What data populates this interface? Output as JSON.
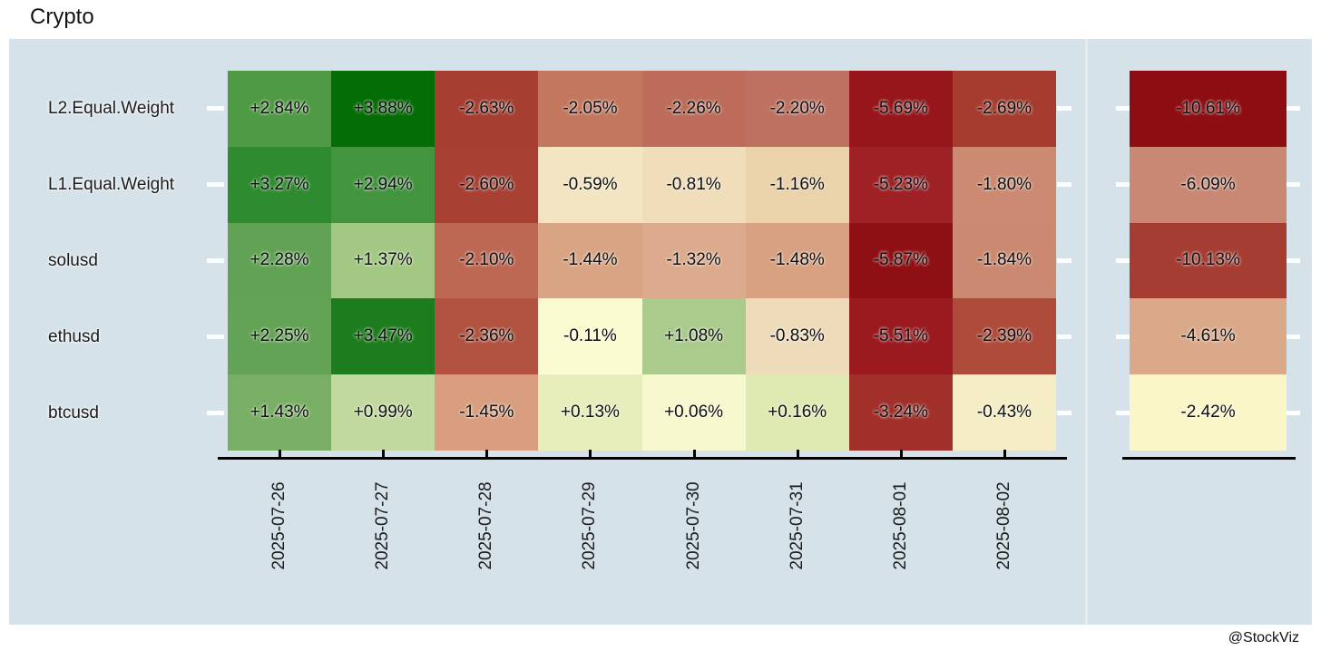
{
  "title": "Crypto",
  "watermark": "@StockViz",
  "panel_bg": "#d5e2e9",
  "axis_color": "#000000",
  "tick_color": "#ffffff",
  "chart_data": {
    "type": "heatmap",
    "title": "Crypto",
    "colormap": "RdYlGn",
    "legend_position": "none",
    "x_categories": [
      "2025-07-26",
      "2025-07-27",
      "2025-07-28",
      "2025-07-29",
      "2025-07-30",
      "2025-07-31",
      "2025-08-01",
      "2025-08-02"
    ],
    "y_categories": [
      "L2.Equal.Weight",
      "L1.Equal.Weight",
      "solusd",
      "ethusd",
      "btcusd"
    ],
    "value_unit": "%",
    "rows": [
      {
        "name": "L2.Equal.Weight",
        "values": [
          2.84,
          3.88,
          -2.63,
          -2.05,
          -2.26,
          -2.2,
          -5.69,
          -2.69
        ],
        "labels": [
          "+2.84%",
          "+3.88%",
          "-2.63%",
          "-2.05%",
          "-2.26%",
          "-2.20%",
          "-5.69%",
          "-2.69%"
        ],
        "colors": [
          "#4f9a44",
          "#056d05",
          "#a63e31",
          "#c3775f",
          "#bc6c59",
          "#be7161",
          "#97161b",
          "#a63c2f"
        ],
        "total": -10.61,
        "total_label": "-10.61%",
        "total_color": "#8d0d12"
      },
      {
        "name": "L1.Equal.Weight",
        "values": [
          3.27,
          2.94,
          -2.6,
          -0.59,
          -0.81,
          -1.16,
          -5.23,
          -1.8
        ],
        "labels": [
          "+3.27%",
          "+2.94%",
          "-2.60%",
          "-0.59%",
          "-0.81%",
          "-1.16%",
          "-5.23%",
          "-1.80%"
        ],
        "colors": [
          "#2f8b30",
          "#43943f",
          "#a84134",
          "#f3e5c1",
          "#f0ddb9",
          "#ead2aa",
          "#9d2125",
          "#cb8a71"
        ],
        "total": -6.09,
        "total_label": "-6.09%",
        "total_color": "#c98873"
      },
      {
        "name": "solusd",
        "values": [
          2.28,
          1.37,
          -2.1,
          -1.44,
          -1.32,
          -1.48,
          -5.87,
          -1.84
        ],
        "labels": [
          "+2.28%",
          "+1.37%",
          "-2.10%",
          "-1.44%",
          "-1.32%",
          "-1.48%",
          "-5.87%",
          "-1.84%"
        ],
        "colors": [
          "#62a255",
          "#a3c883",
          "#bd6853",
          "#d9a484",
          "#dcab8e",
          "#d7a182",
          "#8f1014",
          "#ca8970"
        ],
        "total": -10.13,
        "total_label": "-10.13%",
        "total_color": "#a63d33"
      },
      {
        "name": "ethusd",
        "values": [
          2.25,
          3.47,
          -2.36,
          -0.11,
          1.08,
          -0.83,
          -5.51,
          -2.39
        ],
        "labels": [
          "+2.25%",
          "+3.47%",
          "-2.36%",
          "-0.11%",
          "+1.08%",
          "-0.83%",
          "-5.51%",
          "-2.39%"
        ],
        "colors": [
          "#63a356",
          "#1d7c1d",
          "#b15340",
          "#fbfbd2",
          "#abcb8d",
          "#eedbba",
          "#9a1a1f",
          "#af4b3a"
        ],
        "total": -4.61,
        "total_label": "-4.61%",
        "total_color": "#daa98a"
      },
      {
        "name": "btcusd",
        "values": [
          1.43,
          0.99,
          -1.45,
          0.13,
          0.06,
          0.16,
          -3.24,
          -0.43
        ],
        "labels": [
          "+1.43%",
          "+0.99%",
          "-1.45%",
          "+0.13%",
          "+0.06%",
          "+0.16%",
          "-3.24%",
          "-0.43%"
        ],
        "colors": [
          "#79af64",
          "#c1d99e",
          "#d89e7f",
          "#e7eebc",
          "#f8f8ce",
          "#dfe9b2",
          "#a1302a",
          "#f4edc5"
        ],
        "total": -2.42,
        "total_label": "-2.42%",
        "total_color": "#fbf6c8"
      }
    ]
  }
}
